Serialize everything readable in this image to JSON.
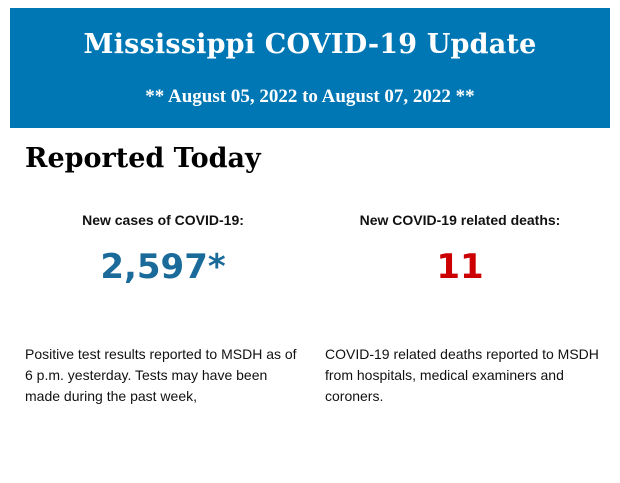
{
  "header": {
    "title": "Mississippi COVID-19 Update",
    "date_range": "** August 05, 2022 to August 07, 2022 **",
    "background_color": "#0077b5"
  },
  "section_title": "Reported Today",
  "cases": {
    "label": "New cases of COVID-19:",
    "value": "2,597*",
    "color": "#1a6b9a",
    "description": "Positive test results reported to MSDH as of 6 p.m. yesterday. Tests may have been made during the past week,"
  },
  "deaths": {
    "label": "New COVID-19 related deaths:",
    "value": "11",
    "color": "#cc0000",
    "description": "COVID-19 related deaths reported to MSDH from hospitals, medical examiners and coroners."
  }
}
